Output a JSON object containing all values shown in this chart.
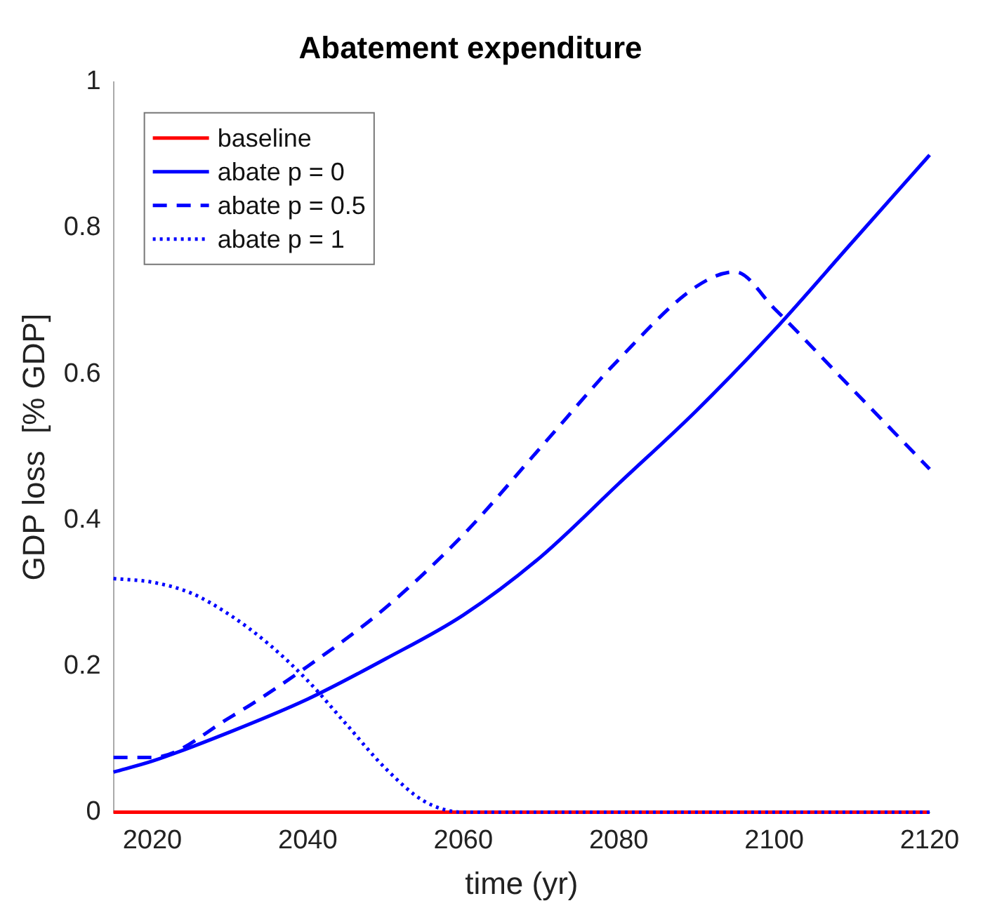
{
  "chart_data": {
    "type": "line",
    "title": "Abatement expenditure",
    "xlabel": "time (yr)",
    "ylabel": "GDP loss  [% GDP]",
    "xlim": [
      2015,
      2120
    ],
    "xticks": [
      2020,
      2040,
      2060,
      2080,
      2100,
      2120
    ],
    "ylim": [
      0,
      1
    ],
    "yticks": [
      0,
      0.2,
      0.4,
      0.6,
      0.8,
      1
    ],
    "grid": false,
    "legend": "top left",
    "series": [
      {
        "name": "baseline",
        "color": "#ff0000",
        "line_style": "solid",
        "x": [
          2015,
          2120
        ],
        "values": [
          0,
          0
        ]
      },
      {
        "name": "abate p = 0",
        "color": "#0000ff",
        "line_style": "solid",
        "x": [
          2015,
          2020,
          2030,
          2040,
          2050,
          2060,
          2070,
          2080,
          2090,
          2100,
          2110,
          2120
        ],
        "values": [
          0.055,
          0.07,
          0.11,
          0.155,
          0.21,
          0.27,
          0.35,
          0.45,
          0.55,
          0.66,
          0.78,
          0.9
        ]
      },
      {
        "name": "abate p = 0.5",
        "color": "#0000ff",
        "line_style": "dashed",
        "x": [
          2015,
          2020,
          2030,
          2040,
          2050,
          2060,
          2070,
          2080,
          2090,
          2095,
          2100,
          2110,
          2120
        ],
        "values": [
          0.075,
          0.075,
          0.13,
          0.2,
          0.28,
          0.38,
          0.5,
          0.62,
          0.72,
          0.74,
          0.69,
          0.58,
          0.47
        ]
      },
      {
        "name": "abate p = 1",
        "color": "#0000ff",
        "line_style": "dotted",
        "x": [
          2015,
          2020,
          2025,
          2030,
          2035,
          2040,
          2045,
          2050,
          2055,
          2060,
          2120
        ],
        "values": [
          0.32,
          0.315,
          0.3,
          0.27,
          0.23,
          0.18,
          0.12,
          0.06,
          0.015,
          0,
          0
        ]
      }
    ]
  }
}
